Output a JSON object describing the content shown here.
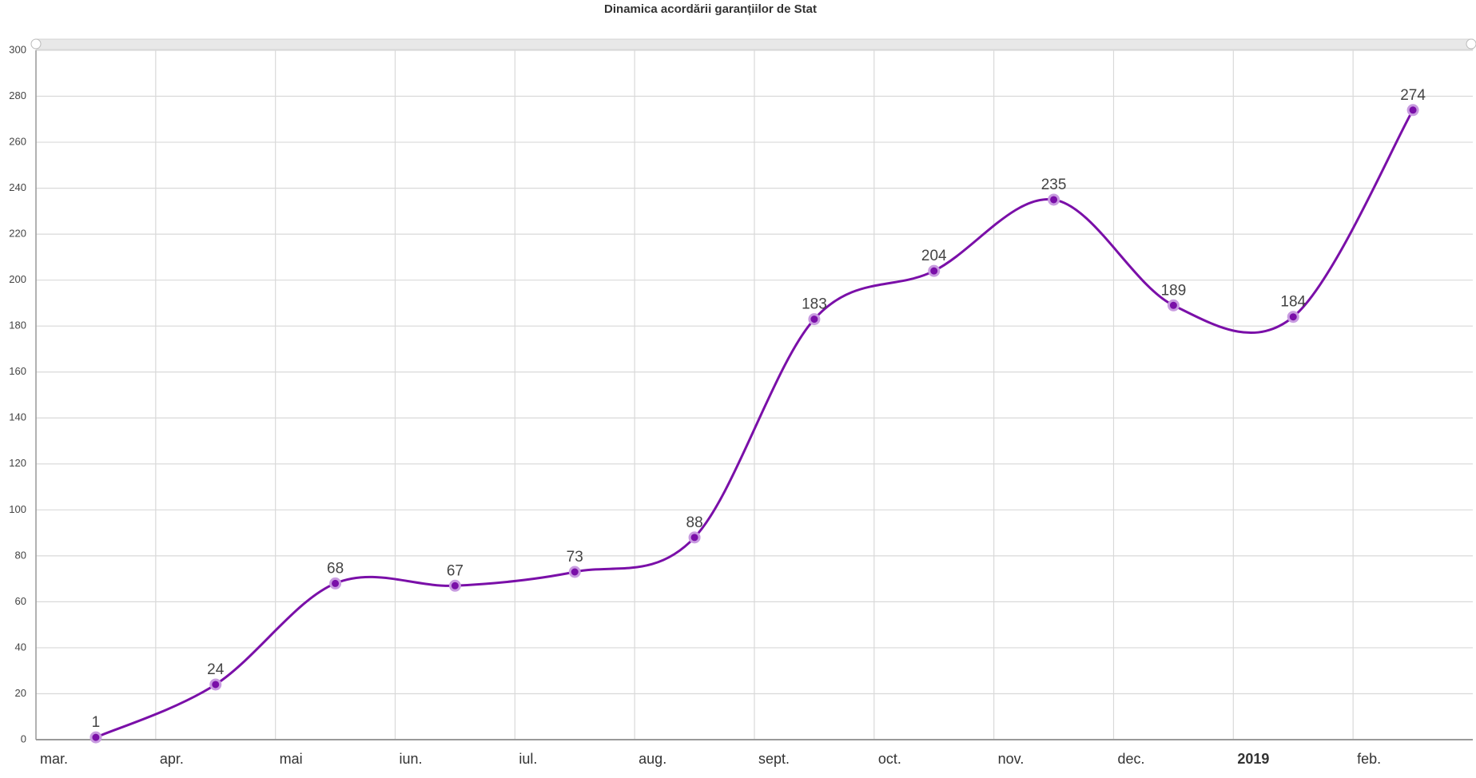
{
  "chart_data": {
    "type": "line",
    "title": "Dinamica acordării garanțiilor de Stat",
    "categories": [
      "mar.",
      "apr.",
      "mai",
      "iun.",
      "iul.",
      "aug.",
      "sept.",
      "oct.",
      "nov.",
      "dec.",
      "2019",
      "feb."
    ],
    "values": [
      1,
      24,
      68,
      67,
      73,
      88,
      183,
      204,
      235,
      189,
      184,
      274
    ],
    "color": "#7a0fa8",
    "ylim": [
      0,
      300
    ],
    "yticks": [
      0,
      20,
      40,
      60,
      80,
      100,
      120,
      140,
      160,
      180,
      200,
      220,
      240,
      260,
      280,
      300
    ],
    "grid": true,
    "smooth": true
  }
}
